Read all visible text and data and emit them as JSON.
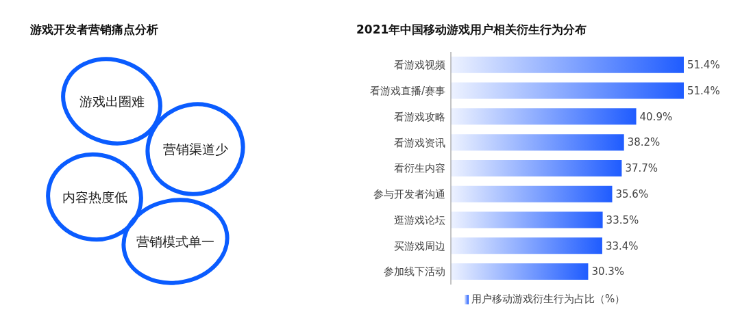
{
  "chart_data": [
    {
      "type": "other",
      "title": "游戏开发者营销痛点分析",
      "annotations": [
        "游戏出圈难",
        "营销渠道少",
        "内容热度低",
        "营销模式单一"
      ]
    },
    {
      "type": "bar",
      "orientation": "horizontal",
      "title": "2021年中国移动游戏用户相关衍生行为分布",
      "categories": [
        "看游戏视频",
        "看游戏直播/赛事",
        "看游戏攻略",
        "看游戏资讯",
        "看衍生内容",
        "参与开发者沟通",
        "逛游戏论坛",
        "买游戏周边",
        "参加线下活动"
      ],
      "series": [
        {
          "name": "用户移动游戏衍生行为占比（%）",
          "color": "#1f5cff",
          "values": [
            51.4,
            51.4,
            40.9,
            38.2,
            37.7,
            35.6,
            33.5,
            33.4,
            30.3
          ],
          "value_labels": [
            "51.4%",
            "51.4%",
            "40.9%",
            "38.2%",
            "37.7%",
            "35.6%",
            "33.5%",
            "33.4%",
            "30.3%"
          ]
        }
      ],
      "legend": "bottom"
    }
  ]
}
